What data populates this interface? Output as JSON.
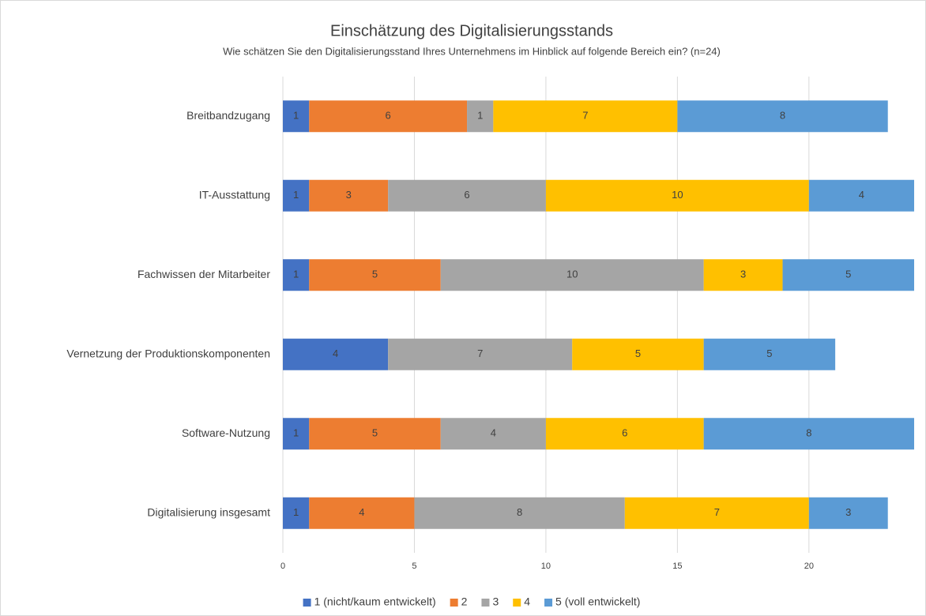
{
  "chart_data": {
    "type": "stacked-barh",
    "title": "Einschätzung des Digitalisierungsstands",
    "subtitle": "Wie schätzen Sie den Digitalisierungsstand Ihres Unternehmens im Hinblick auf folgende Bereich ein? (n=24)",
    "categories": [
      "Breitbandzugang",
      "IT-Ausstattung",
      "Fachwissen der Mitarbeiter",
      "Vernetzung der Produktionskomponenten",
      "Software-Nutzung",
      "Digitalisierung insgesamt"
    ],
    "series": [
      {
        "name": "1 (nicht/kaum entwickelt)",
        "color": "#4472c4",
        "values": [
          1,
          1,
          1,
          4,
          1,
          1
        ]
      },
      {
        "name": "2",
        "color": "#ed7d31",
        "values": [
          6,
          3,
          5,
          null,
          5,
          4
        ]
      },
      {
        "name": "3",
        "color": "#a5a5a5",
        "values": [
          1,
          6,
          10,
          7,
          4,
          8
        ]
      },
      {
        "name": "4",
        "color": "#ffc000",
        "values": [
          7,
          10,
          3,
          5,
          6,
          7
        ]
      },
      {
        "name": "5 (voll entwickelt)",
        "color": "#5b9bd5",
        "values": [
          8,
          4,
          5,
          5,
          8,
          3
        ]
      }
    ],
    "xlim": [
      0,
      24
    ],
    "xticks": [
      0,
      5,
      10,
      15,
      20
    ],
    "grid": true,
    "legend": "bottom"
  }
}
